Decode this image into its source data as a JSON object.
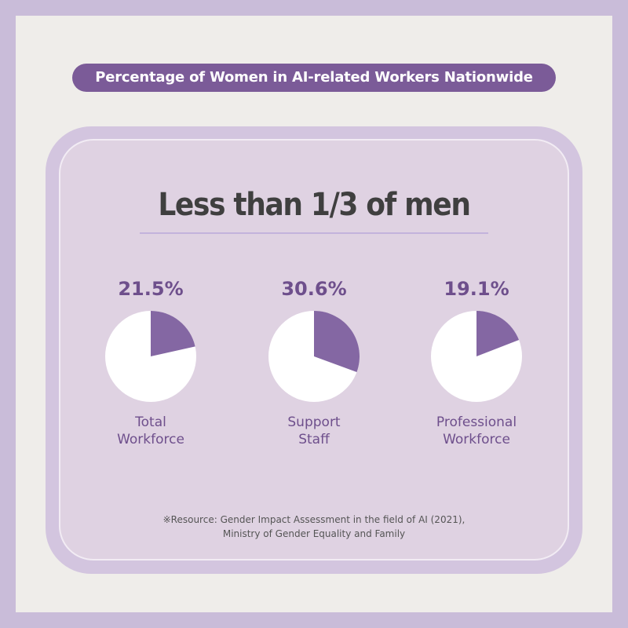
{
  "header": {
    "title": "Percentage of Women in AI-related Workers Nationwide"
  },
  "headline": "Less than 1/3 of men",
  "source": {
    "line1": "※Resource: Gender Impact Assessment in the field of AI (2021),",
    "line2": "Ministry of Gender Equality and Family"
  },
  "colors": {
    "accent": "#7b5b98",
    "slice": "#8467a3",
    "pie_base": "#ffffff"
  },
  "chart_data": {
    "type": "pie",
    "title": "Percentage of Women in AI-related Workers Nationwide",
    "unit": "%",
    "charts": [
      {
        "value_label": "21.5%",
        "value": 21.5,
        "label_line1": "Total",
        "label_line2": "Workforce"
      },
      {
        "value_label": "30.6%",
        "value": 30.6,
        "label_line1": "Support",
        "label_line2": "Staff"
      },
      {
        "value_label": "19.1%",
        "value": 19.1,
        "label_line1": "Professional",
        "label_line2": "Workforce"
      }
    ]
  }
}
